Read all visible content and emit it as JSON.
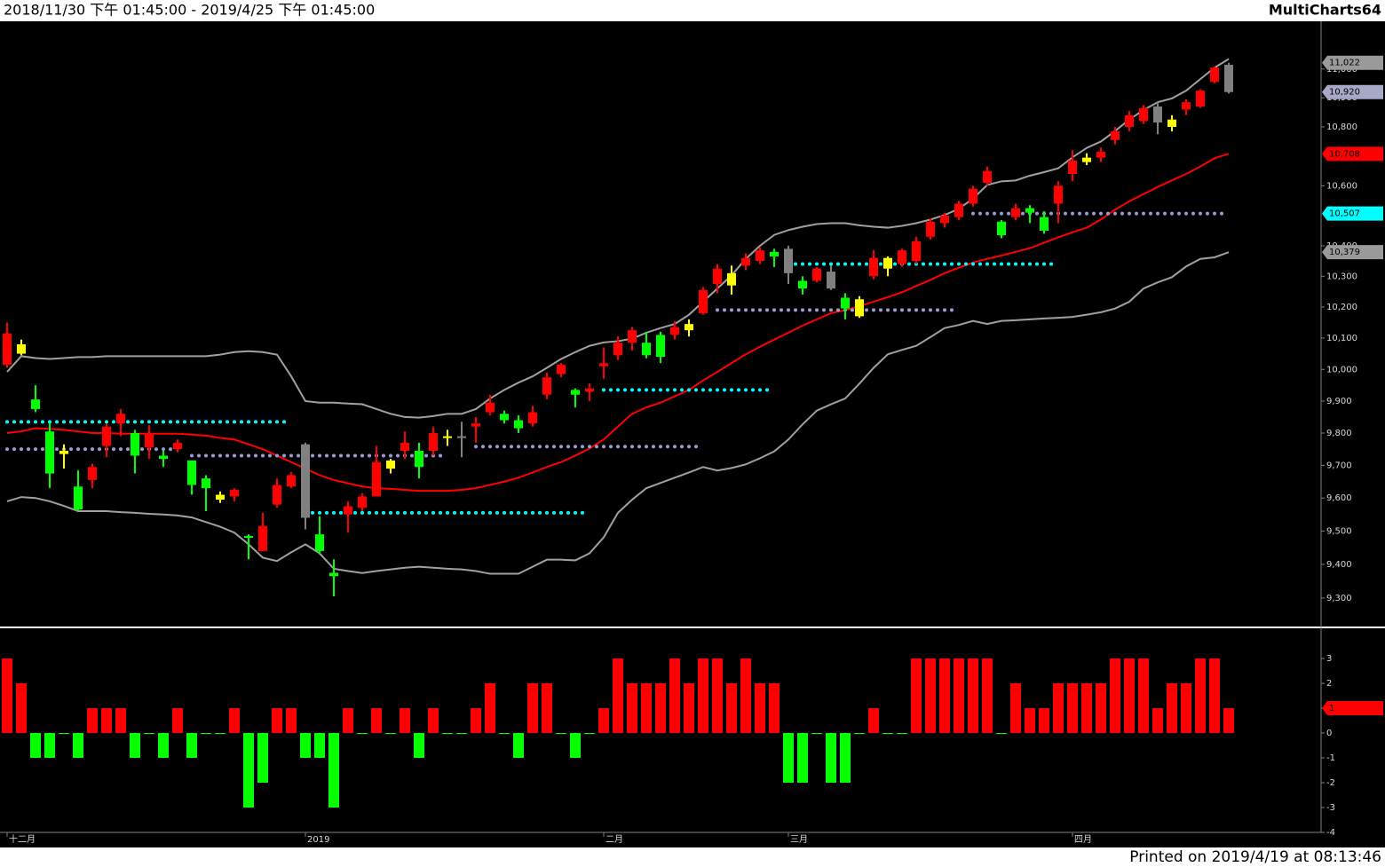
{
  "header": {
    "range": "2018/11/30 下午 01:45:00 - 2019/4/25 下午 01:45:00",
    "brand": "MultiCharts64"
  },
  "footer": {
    "printed": "Printed on 2019/4/19 at 08:13:46"
  },
  "chart_data": [
    {
      "type": "candlestick",
      "log_scale": true,
      "ylim": [
        9219,
        11168
      ],
      "yticks": [
        {
          "value": 9300,
          "label": "9,300"
        },
        {
          "value": 9400,
          "label": "9,400"
        },
        {
          "value": 9500,
          "label": "9,500"
        },
        {
          "value": 9600,
          "label": "9,600"
        },
        {
          "value": 9700,
          "label": "9,700"
        },
        {
          "value": 9800,
          "label": "9,800"
        },
        {
          "value": 9900,
          "label": "9,900"
        },
        {
          "value": 10000,
          "label": "10,000"
        },
        {
          "value": 10100,
          "label": "10,100"
        },
        {
          "value": 10200,
          "label": "10,200"
        },
        {
          "value": 10300,
          "label": "10,300"
        },
        {
          "value": 10400,
          "label": "10,400"
        },
        {
          "value": 10600,
          "label": "10,600"
        },
        {
          "value": 10800,
          "label": "10,800"
        },
        {
          "value": 10900,
          "label": "10,900"
        },
        {
          "value": 11000,
          "label": "11,000"
        }
      ],
      "categories": [
        "十二月",
        null,
        null,
        null,
        null,
        null,
        null,
        null,
        null,
        null,
        null,
        null,
        null,
        null,
        null,
        null,
        null,
        null,
        null,
        null,
        null,
        "2019",
        null,
        null,
        null,
        null,
        null,
        null,
        null,
        null,
        null,
        null,
        null,
        null,
        null,
        null,
        null,
        null,
        null,
        null,
        null,
        null,
        "二月",
        null,
        null,
        null,
        null,
        null,
        null,
        null,
        null,
        null,
        null,
        null,
        null,
        "三月",
        null,
        null,
        null,
        null,
        null,
        null,
        null,
        null,
        null,
        null,
        null,
        null,
        null,
        null,
        null,
        null,
        null,
        null,
        null,
        "四月",
        null,
        null,
        null,
        null,
        null,
        null,
        null,
        null,
        null,
        null,
        null
      ],
      "open": [
        10015,
        10080,
        9905,
        9805,
        9745,
        9635,
        9655,
        9760,
        9830,
        9800,
        9755,
        9730,
        9750,
        9715,
        9660,
        9610,
        9605,
        9485,
        9440,
        9580,
        9635,
        9765,
        9490,
        9375,
        9550,
        9570,
        9605,
        9715,
        9745,
        9745,
        9745,
        9790,
        9790,
        9820,
        9865,
        9860,
        9840,
        9830,
        9920,
        9985,
        9935,
        9930,
        10010,
        10045,
        10085,
        10085,
        10110,
        10110,
        10145,
        10180,
        10275,
        10310,
        10335,
        10350,
        10380,
        10390,
        10285,
        10285,
        10315,
        10230,
        10225,
        10300,
        10360,
        10340,
        10350,
        10430,
        10475,
        10495,
        10540,
        10610,
        10480,
        10495,
        10525,
        10495,
        10540,
        10640,
        10695,
        10695,
        10755,
        10800,
        10820,
        10870,
        10825,
        10860,
        10870,
        10955,
        11015
      ],
      "high": [
        10150,
        10095,
        9950,
        9830,
        9765,
        9685,
        9705,
        9830,
        9875,
        9810,
        9825,
        9745,
        9780,
        9715,
        9670,
        9620,
        9630,
        9490,
        9555,
        9660,
        9680,
        9770,
        9545,
        9415,
        9590,
        9615,
        9760,
        9720,
        9805,
        9770,
        9820,
        9810,
        9835,
        9850,
        9920,
        9870,
        9855,
        9885,
        9990,
        10020,
        9940,
        9955,
        10070,
        10105,
        10135,
        10120,
        10120,
        10155,
        10160,
        10265,
        10340,
        10335,
        10375,
        10395,
        10390,
        10400,
        10300,
        10330,
        10335,
        10245,
        10235,
        10385,
        10365,
        10390,
        10430,
        10490,
        10510,
        10550,
        10600,
        10665,
        10485,
        10540,
        10535,
        10515,
        10615,
        10720,
        10710,
        10730,
        10800,
        10855,
        10875,
        10885,
        10840,
        10895,
        10930,
        11010,
        11022
      ],
      "low": [
        10005,
        10045,
        9865,
        9630,
        9690,
        9560,
        9630,
        9725,
        9790,
        9675,
        9720,
        9695,
        9740,
        9610,
        9560,
        9585,
        9590,
        9415,
        9440,
        9570,
        9630,
        9505,
        9430,
        9305,
        9495,
        9560,
        9605,
        9675,
        9720,
        9660,
        9730,
        9760,
        9725,
        9770,
        9855,
        9830,
        9800,
        9820,
        9905,
        9975,
        9880,
        9900,
        9970,
        10030,
        10060,
        10035,
        10020,
        10095,
        10105,
        10175,
        10245,
        10240,
        10320,
        10340,
        10330,
        10275,
        10240,
        10280,
        10255,
        10160,
        10165,
        10290,
        10300,
        10330,
        10340,
        10420,
        10460,
        10485,
        10530,
        10600,
        10425,
        10485,
        10475,
        10440,
        10475,
        10615,
        10670,
        10680,
        10740,
        10785,
        10810,
        10775,
        10785,
        10840,
        10865,
        10950,
        10915
      ],
      "close": [
        10115,
        10050,
        9875,
        9675,
        9735,
        9565,
        9695,
        9820,
        9860,
        9730,
        9800,
        9720,
        9770,
        9640,
        9630,
        9595,
        9625,
        9480,
        9515,
        9640,
        9670,
        9540,
        9440,
        9365,
        9575,
        9605,
        9710,
        9690,
        9770,
        9695,
        9800,
        9785,
        9785,
        9830,
        9895,
        9840,
        9815,
        9865,
        9975,
        10015,
        9920,
        9940,
        10020,
        10085,
        10125,
        10045,
        10040,
        10135,
        10125,
        10255,
        10325,
        10270,
        10360,
        10385,
        10365,
        10310,
        10260,
        10325,
        10260,
        10195,
        10170,
        10360,
        10325,
        10385,
        10415,
        10480,
        10500,
        10540,
        10590,
        10650,
        10435,
        10525,
        10510,
        10450,
        10600,
        10685,
        10680,
        10715,
        10785,
        10840,
        10865,
        10815,
        10800,
        10885,
        10925,
        11005,
        10920
      ],
      "palette": {
        "r": "#ff0000",
        "g": "#00ff00",
        "y": "#ffff00",
        "a": "#808080"
      },
      "candle_colors": "ryggygrrrgrgrggyrgrrraggrrryrgryarrggrrrgrrrrggryrryrrgagragyryrrrrrrrgrggrryrrrrayrrra",
      "lines": [
        {
          "color": "#a0a0a0",
          "values": [
            9992,
            10042,
            10036,
            10033,
            10036,
            10039,
            10039,
            10042,
            10042,
            10042,
            10042,
            10042,
            10042,
            10042,
            10042,
            10047,
            10055,
            10058,
            10055,
            10047,
            9978,
            9900,
            9895,
            9895,
            9892,
            9890,
            9875,
            9860,
            9850,
            9848,
            9853,
            9860,
            9860,
            9875,
            9908,
            9935,
            9958,
            9978,
            10005,
            10033,
            10055,
            10075,
            10086,
            10090,
            10098,
            10117,
            10132,
            10145,
            10175,
            10217,
            10260,
            10303,
            10357,
            10400,
            10436,
            10452,
            10463,
            10472,
            10475,
            10475,
            10468,
            10463,
            10460,
            10466,
            10475,
            10487,
            10502,
            10523,
            10557,
            10603,
            10615,
            10618,
            10634,
            10646,
            10659,
            10696,
            10728,
            10750,
            10786,
            10825,
            10858,
            10885,
            10898,
            10925,
            10965,
            11005,
            11035
          ]
        },
        {
          "color": "#ff0000",
          "values": [
            9800,
            9805,
            9815,
            9813,
            9810,
            9805,
            9800,
            9800,
            9798,
            9798,
            9798,
            9798,
            9798,
            9795,
            9792,
            9785,
            9780,
            9765,
            9750,
            9730,
            9710,
            9690,
            9670,
            9655,
            9645,
            9635,
            9630,
            9628,
            9625,
            9622,
            9622,
            9622,
            9625,
            9630,
            9640,
            9650,
            9662,
            9678,
            9695,
            9710,
            9730,
            9752,
            9780,
            9820,
            9860,
            9880,
            9895,
            9915,
            9935,
            9965,
            9992,
            10020,
            10048,
            10072,
            10095,
            10117,
            10140,
            10160,
            10180,
            10190,
            10203,
            10217,
            10232,
            10248,
            10268,
            10288,
            10310,
            10328,
            10345,
            10357,
            10368,
            10380,
            10392,
            10410,
            10428,
            10445,
            10460,
            10487,
            10520,
            10548,
            10572,
            10596,
            10618,
            10640,
            10665,
            10693,
            10708
          ]
        },
        {
          "color": "#a0a0a0",
          "values": [
            9590,
            9603,
            9600,
            9590,
            9576,
            9560,
            9560,
            9560,
            9557,
            9555,
            9552,
            9550,
            9547,
            9541,
            9527,
            9513,
            9495,
            9460,
            9420,
            9410,
            9436,
            9460,
            9433,
            9387,
            9380,
            9374,
            9380,
            9385,
            9390,
            9393,
            9390,
            9387,
            9385,
            9380,
            9372,
            9372,
            9372,
            9393,
            9414,
            9414,
            9412,
            9433,
            9481,
            9555,
            9595,
            9630,
            9646,
            9662,
            9678,
            9695,
            9684,
            9692,
            9703,
            9722,
            9743,
            9780,
            9827,
            9870,
            9890,
            9908,
            9955,
            10005,
            10048,
            10062,
            10075,
            10103,
            10132,
            10142,
            10155,
            10145,
            10155,
            10157,
            10160,
            10163,
            10165,
            10168,
            10175,
            10183,
            10195,
            10217,
            10260,
            10280,
            10297,
            10332,
            10357,
            10362,
            10379
          ]
        }
      ],
      "levels": [
        {
          "value": 9835,
          "start": 0,
          "end": 20,
          "color": "#00ffff"
        },
        {
          "value": 9750,
          "start": 0,
          "end": 12,
          "color": "#9a9ad8"
        },
        {
          "value": 9730,
          "start": 13,
          "end": 31,
          "color": "#9a9ad8"
        },
        {
          "value": 9555,
          "start": 21,
          "end": 41,
          "color": "#00ffff"
        },
        {
          "value": 9758,
          "start": 33,
          "end": 49,
          "color": "#9a9ad8"
        },
        {
          "value": 9935,
          "start": 42,
          "end": 54,
          "color": "#00ffff"
        },
        {
          "value": 10190,
          "start": 50,
          "end": 67,
          "color": "#9a9ad8"
        },
        {
          "value": 10340,
          "start": 55,
          "end": 74,
          "color": "#00ffff"
        },
        {
          "value": 10507,
          "start": 68,
          "end": 86,
          "color": "#9a9ad8"
        }
      ],
      "markers": [
        {
          "value": 11022,
          "label": "11,022",
          "color": "#9a9a9a"
        },
        {
          "value": 10920,
          "label": "10,920",
          "color": "#a8a8c8"
        },
        {
          "value": 10708,
          "label": "10,708",
          "color": "#ff0000"
        },
        {
          "value": 10507,
          "label": "10,507",
          "color": "#00ffff"
        },
        {
          "value": 10379,
          "label": "10,379",
          "color": "#9a9a9a"
        }
      ]
    },
    {
      "type": "bar",
      "ylim": [
        -4,
        4
      ],
      "yticks": [
        3,
        2,
        1,
        0,
        -1,
        -2,
        -3,
        -4
      ],
      "values": [
        3,
        2,
        -1,
        -1,
        0,
        -1,
        1,
        1,
        1,
        -1,
        0,
        -1,
        1,
        -1,
        0,
        0,
        1,
        -3,
        -2,
        1,
        1,
        -1,
        -1,
        -3,
        1,
        0,
        1,
        0,
        1,
        -1,
        1,
        0,
        0,
        1,
        2,
        0,
        -1,
        2,
        2,
        0,
        -1,
        0,
        1,
        3,
        2,
        2,
        2,
        3,
        2,
        3,
        3,
        2,
        3,
        2,
        2,
        -2,
        -2,
        0,
        -2,
        -2,
        0,
        1,
        0,
        0,
        3,
        3,
        3,
        3,
        3,
        3,
        0,
        2,
        1,
        1,
        2,
        2,
        2,
        2,
        3,
        3,
        3,
        1,
        2,
        2,
        3,
        3,
        1
      ],
      "up_color": "#ff0000",
      "down_color": "#00ff00",
      "markers": [
        {
          "value": 1,
          "label": "1",
          "color": "#ff0000"
        }
      ]
    }
  ]
}
